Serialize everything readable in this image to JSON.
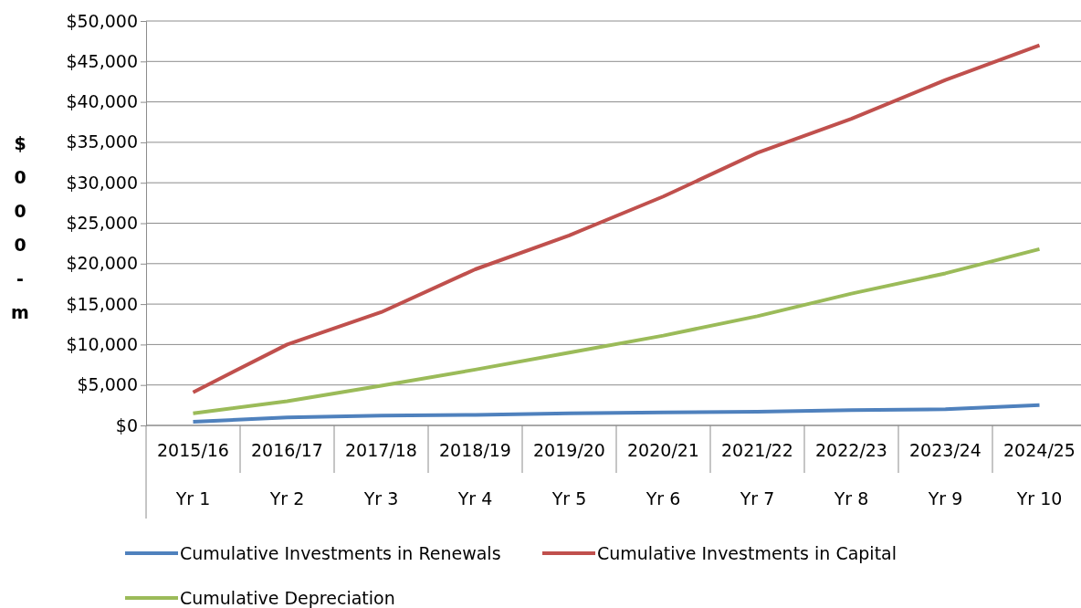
{
  "chart_data": {
    "type": "line",
    "ylabel": "$000-m",
    "categories": [
      "2015/16\nYr 1",
      "2016/17\nYr 2",
      "2017/18\nYr 3",
      "2018/19\nYr 4",
      "2019/20\nYr 5",
      "2020/21\nYr 6",
      "2021/22\nYr 7",
      "2022/23\nYr 8",
      "2023/24\nYr 9",
      "2024/25\nYr 10"
    ],
    "series": [
      {
        "name": "Cumulative Investments in Renewals",
        "color": "#4f81bd",
        "values": [
          450,
          1000,
          1200,
          1300,
          1500,
          1600,
          1700,
          1900,
          2000,
          2500
        ]
      },
      {
        "name": "Cumulative Investments in Capital",
        "color": "#c0504d",
        "values": [
          4100,
          10000,
          14000,
          19300,
          23500,
          28300,
          33700,
          37900,
          42700,
          47000
        ]
      },
      {
        "name": "Cumulative Depreciation",
        "color": "#9bbb59",
        "values": [
          1500,
          3000,
          4900,
          6900,
          9000,
          11100,
          13500,
          16300,
          18800,
          21800
        ]
      }
    ],
    "ylim": [
      0,
      50000
    ],
    "yticks": [
      {
        "value": 0,
        "label": "$0"
      },
      {
        "value": 5000,
        "label": "$5,000"
      },
      {
        "value": 10000,
        "label": "$10,000"
      },
      {
        "value": 15000,
        "label": "$15,000"
      },
      {
        "value": 20000,
        "label": "$20,000"
      },
      {
        "value": 25000,
        "label": "$25,000"
      },
      {
        "value": 30000,
        "label": "$30,000"
      },
      {
        "value": 35000,
        "label": "$35,000"
      },
      {
        "value": 40000,
        "label": "$40,000"
      },
      {
        "value": 45000,
        "label": "$45,000"
      },
      {
        "value": 50000,
        "label": "$50,000"
      }
    ],
    "grid": "y",
    "legend": "bottom",
    "marker": "none",
    "line_style": "solid"
  }
}
